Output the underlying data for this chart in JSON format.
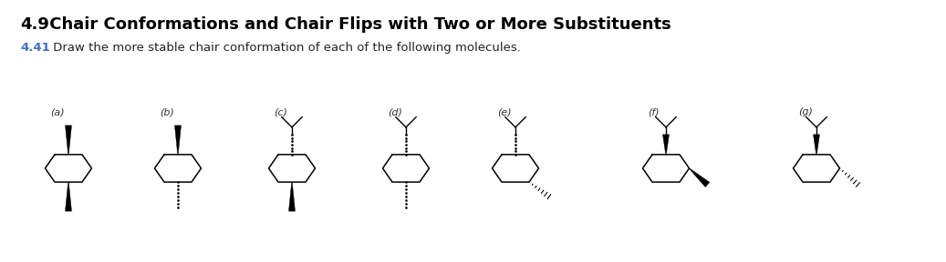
{
  "title1_bold": "4.9",
  "title1_rest": " Chair Conformations and Chair Flips with Two or More Substituents",
  "title2_num": "4.41",
  "title2_rest": " Draw the more stable chair conformation of each of the following molecules.",
  "title1_color": "#000000",
  "title2_color": "#4472C4",
  "bg_color": "#ffffff",
  "labels": [
    "(a)",
    "(b)",
    "(c)",
    "(d)",
    "(e)",
    "(f)",
    "(g)"
  ]
}
